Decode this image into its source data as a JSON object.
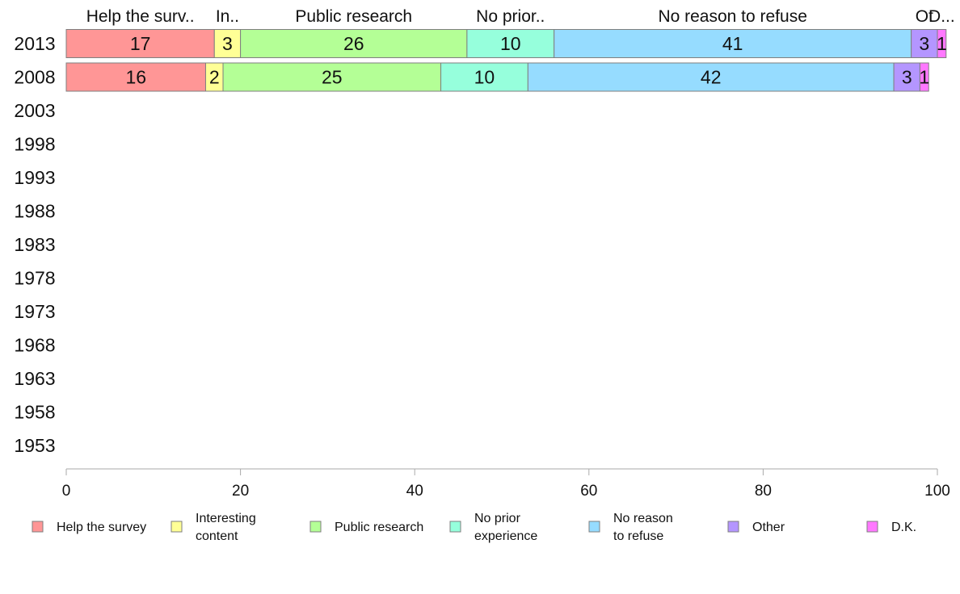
{
  "chart_data": {
    "type": "bar",
    "orientation": "horizontal-stacked",
    "categories": [
      "2013",
      "2008",
      "2003",
      "1998",
      "1993",
      "1988",
      "1983",
      "1978",
      "1973",
      "1968",
      "1963",
      "1958",
      "1953"
    ],
    "series": [
      {
        "name": "Help the survey",
        "short": "Help the surv..",
        "color": "#ff9696",
        "legend_lines": [
          "Help the survey"
        ],
        "values": [
          17,
          16,
          null,
          null,
          null,
          null,
          null,
          null,
          null,
          null,
          null,
          null,
          null
        ]
      },
      {
        "name": "Interesting content",
        "short": "In..",
        "color": "#ffff96",
        "legend_lines": [
          "Interesting",
          "content"
        ],
        "values": [
          3,
          2,
          null,
          null,
          null,
          null,
          null,
          null,
          null,
          null,
          null,
          null,
          null
        ]
      },
      {
        "name": "Public research",
        "short": "Public research",
        "color": "#b4ff96",
        "legend_lines": [
          "Public research"
        ],
        "values": [
          26,
          25,
          null,
          null,
          null,
          null,
          null,
          null,
          null,
          null,
          null,
          null,
          null
        ]
      },
      {
        "name": "No prior experience",
        "short": "No prior..",
        "color": "#96ffdc",
        "legend_lines": [
          "No prior",
          "experience"
        ],
        "values": [
          10,
          10,
          null,
          null,
          null,
          null,
          null,
          null,
          null,
          null,
          null,
          null,
          null
        ]
      },
      {
        "name": "No reason to refuse",
        "short": "No reason to refuse",
        "color": "#96dcff",
        "legend_lines": [
          "No reason",
          "to refuse"
        ],
        "values": [
          41,
          42,
          null,
          null,
          null,
          null,
          null,
          null,
          null,
          null,
          null,
          null,
          null
        ]
      },
      {
        "name": "Other",
        "short": "Ot",
        "color": "#b496ff",
        "legend_lines": [
          "Other"
        ],
        "values": [
          3,
          3,
          null,
          null,
          null,
          null,
          null,
          null,
          null,
          null,
          null,
          null,
          null
        ]
      },
      {
        "name": "D.K.",
        "short": "D...",
        "color": "#ff78ff",
        "legend_lines": [
          "D.K."
        ],
        "values": [
          1,
          1,
          null,
          null,
          null,
          null,
          null,
          null,
          null,
          null,
          null,
          null,
          null
        ]
      }
    ],
    "xlim": [
      0,
      100
    ],
    "xticks": [
      0,
      20,
      40,
      60,
      80,
      100
    ],
    "title": "",
    "xlabel": "",
    "ylabel": "",
    "grid": false,
    "legend_position": "bottom"
  }
}
